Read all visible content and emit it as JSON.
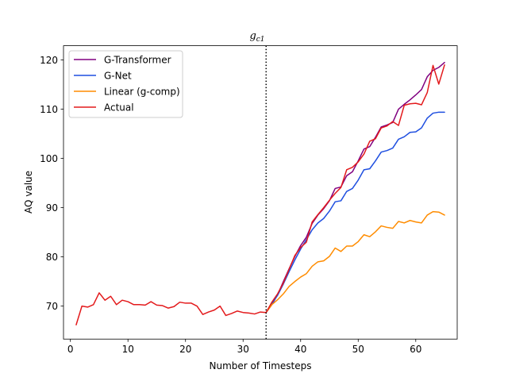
{
  "chart_data": {
    "type": "line",
    "title": "g",
    "title_subscript": "c1",
    "xlabel": "Number of Timesteps",
    "ylabel": "AQ value",
    "xlim": [
      -1.2,
      67.2
    ],
    "ylim": [
      63.3,
      122.9
    ],
    "xticks": [
      0,
      10,
      20,
      30,
      40,
      50,
      60
    ],
    "yticks": [
      70,
      80,
      90,
      100,
      110,
      120
    ],
    "grid": false,
    "legend_position": "top-left",
    "vline": {
      "x": 34,
      "style": "dotted",
      "color": "#000000"
    },
    "series": [
      {
        "name": "G-Transformer",
        "color": "#800080",
        "x": [
          34,
          35,
          36,
          37,
          38,
          39,
          40,
          41,
          42,
          43,
          44,
          45,
          46,
          47,
          48,
          49,
          50,
          51,
          52,
          53,
          54,
          55,
          56,
          57,
          58,
          59,
          60,
          61,
          62,
          63,
          64,
          65
        ],
        "y": [
          68.7,
          70.3,
          72.3,
          75.0,
          77.6,
          80.1,
          82.3,
          84.0,
          86.8,
          88.5,
          89.8,
          91.4,
          93.9,
          94.2,
          96.5,
          97.3,
          99.5,
          101.9,
          102.4,
          104.3,
          106.4,
          106.8,
          107.3,
          110.0,
          111.0,
          111.9,
          112.9,
          114.0,
          116.6,
          117.9,
          118.5,
          119.5
        ]
      },
      {
        "name": "G-Net",
        "color": "#1f4fe0",
        "x": [
          34,
          35,
          36,
          37,
          38,
          39,
          40,
          41,
          42,
          43,
          44,
          45,
          46,
          47,
          48,
          49,
          50,
          51,
          52,
          53,
          54,
          55,
          56,
          57,
          58,
          59,
          60,
          61,
          62,
          63,
          64,
          65
        ],
        "y": [
          68.7,
          70.5,
          72.2,
          74.5,
          77.0,
          79.4,
          81.6,
          83.5,
          85.5,
          86.9,
          87.8,
          89.3,
          91.2,
          91.4,
          93.3,
          93.9,
          95.6,
          97.7,
          97.9,
          99.5,
          101.3,
          101.6,
          102.1,
          103.9,
          104.4,
          105.3,
          105.4,
          106.2,
          108.2,
          109.2,
          109.4,
          109.4
        ]
      },
      {
        "name": "Linear (g-comp)",
        "color": "#ff8c00",
        "x": [
          34,
          35,
          36,
          37,
          38,
          39,
          40,
          41,
          42,
          43,
          44,
          45,
          46,
          47,
          48,
          49,
          50,
          51,
          52,
          53,
          54,
          55,
          56,
          57,
          58,
          59,
          60,
          61,
          62,
          63,
          64,
          65
        ],
        "y": [
          68.7,
          70.3,
          71.3,
          72.5,
          74.0,
          75.0,
          75.9,
          76.6,
          78.1,
          79.0,
          79.2,
          80.1,
          81.8,
          81.1,
          82.2,
          82.2,
          83.1,
          84.5,
          84.1,
          85.1,
          86.3,
          86.0,
          85.8,
          87.2,
          86.9,
          87.4,
          87.1,
          86.9,
          88.5,
          89.2,
          89.1,
          88.5
        ]
      },
      {
        "name": "Actual",
        "color": "#e31a1c",
        "x": [
          1,
          2,
          3,
          4,
          5,
          6,
          7,
          8,
          9,
          10,
          11,
          12,
          13,
          14,
          15,
          16,
          17,
          18,
          19,
          20,
          21,
          22,
          23,
          24,
          25,
          26,
          27,
          28,
          29,
          30,
          31,
          32,
          33,
          34,
          35,
          36,
          37,
          38,
          39,
          40,
          41,
          42,
          43,
          44,
          45,
          46,
          47,
          48,
          49,
          50,
          51,
          52,
          53,
          54,
          55,
          56,
          57,
          58,
          59,
          60,
          61,
          62,
          63,
          64,
          65
        ],
        "y": [
          66.2,
          70.0,
          69.8,
          70.3,
          72.7,
          71.2,
          72.0,
          70.3,
          71.2,
          70.9,
          70.3,
          70.3,
          70.2,
          70.9,
          70.2,
          70.1,
          69.6,
          69.9,
          70.8,
          70.6,
          70.6,
          70.0,
          68.3,
          68.8,
          69.2,
          70.0,
          68.1,
          68.5,
          69.0,
          68.7,
          68.6,
          68.4,
          68.8,
          68.7,
          70.8,
          72.5,
          74.7,
          77.5,
          80.3,
          81.9,
          83.0,
          87.1,
          88.6,
          90.0,
          91.5,
          92.9,
          94.1,
          97.7,
          98.2,
          99.3,
          100.9,
          103.5,
          104.0,
          106.2,
          106.6,
          107.5,
          106.7,
          110.8,
          111.1,
          111.2,
          110.9,
          113.4,
          118.9,
          115.1,
          119.0
        ]
      }
    ]
  }
}
